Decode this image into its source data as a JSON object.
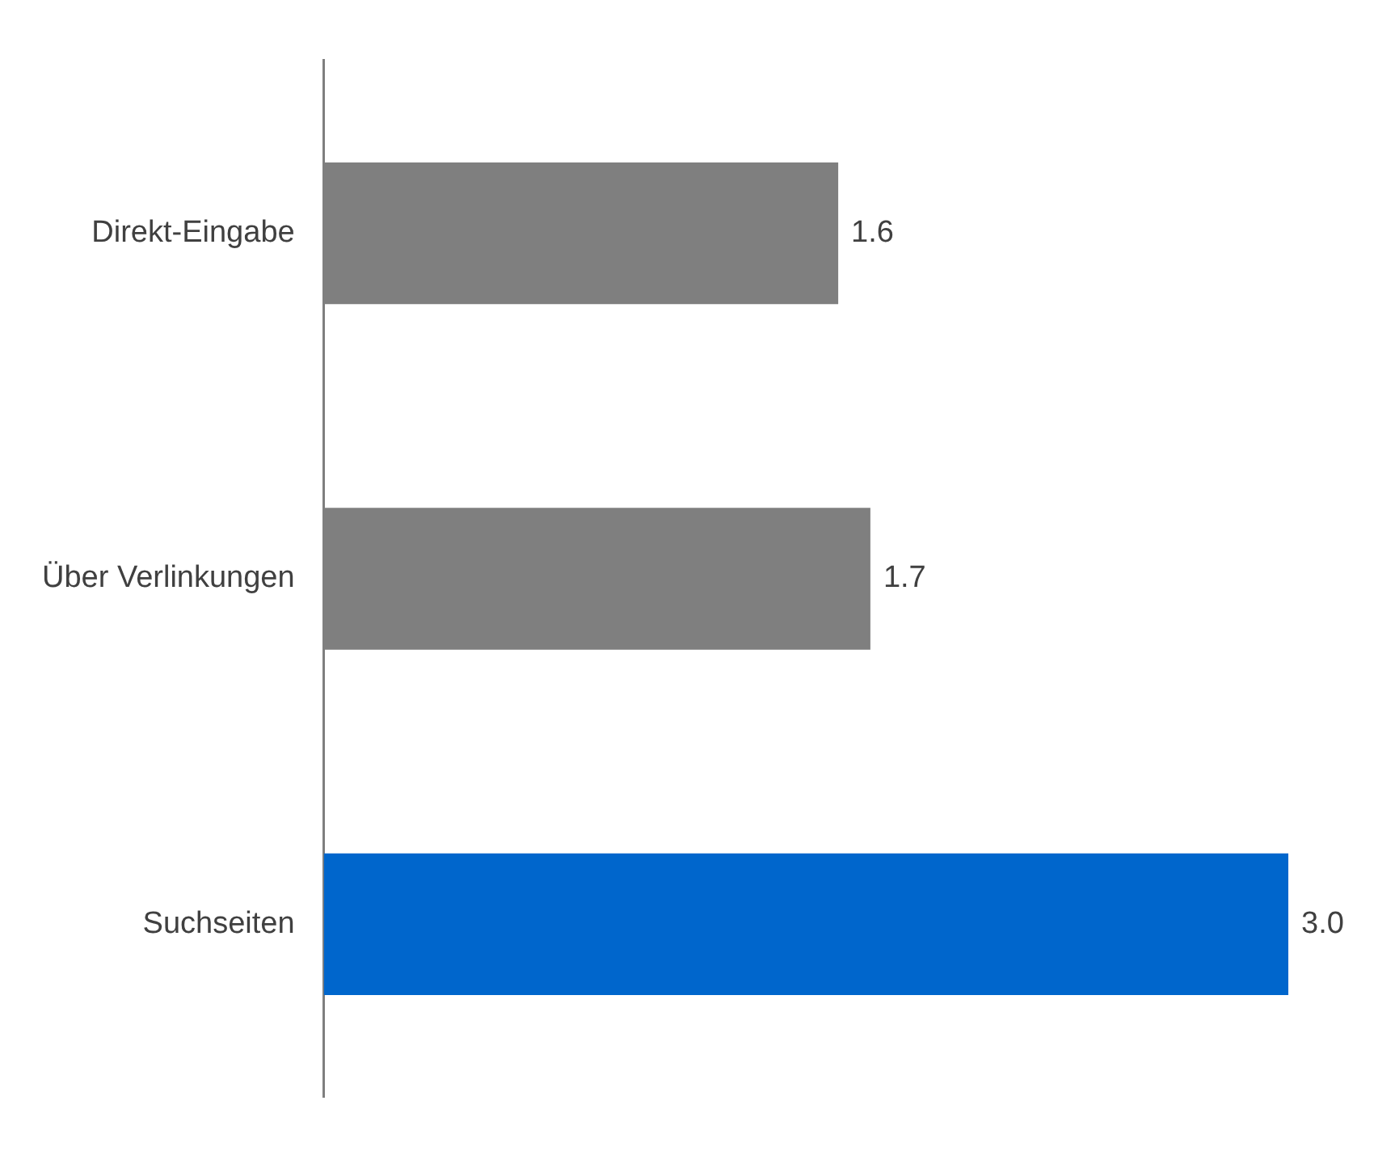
{
  "chart_data": {
    "type": "bar",
    "orientation": "horizontal",
    "categories": [
      "Direkt-Eingabe",
      "Über Verlinkungen",
      "Suchseiten"
    ],
    "values": [
      1.6,
      1.7,
      3.0
    ],
    "colors": [
      "#7f7f7f",
      "#7f7f7f",
      "#0066cc"
    ],
    "value_labels": [
      "1.6",
      "1.7",
      "3.0"
    ],
    "grid": false,
    "legend": false
  }
}
